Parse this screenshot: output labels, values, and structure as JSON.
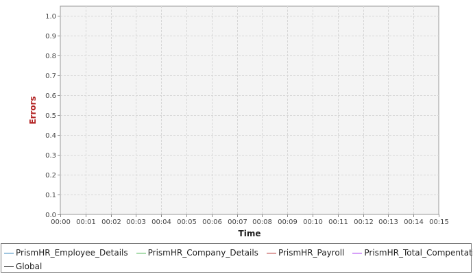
{
  "chart_data": {
    "type": "line",
    "title": "",
    "xlabel": "Time",
    "ylabel": "Errors",
    "x_ticks": [
      "00:00",
      "00:01",
      "00:02",
      "00:03",
      "00:04",
      "00:05",
      "00:06",
      "00:07",
      "00:08",
      "00:09",
      "00:10",
      "00:11",
      "00:12",
      "00:13",
      "00:14",
      "00:15"
    ],
    "y_ticks": [
      "0.0",
      "0.1",
      "0.2",
      "0.3",
      "0.4",
      "0.5",
      "0.6",
      "0.7",
      "0.8",
      "0.9",
      "1.0"
    ],
    "xlim": [
      "00:00",
      "00:15"
    ],
    "ylim": [
      0.0,
      1.05
    ],
    "grid": true,
    "legend_position": "bottom",
    "series": [
      {
        "name": "PrismHR_Employee_Details",
        "color": "#1f77b4",
        "values": []
      },
      {
        "name": "PrismHR_Company_Details",
        "color": "#3cb043",
        "values": []
      },
      {
        "name": "PrismHR_Payroll",
        "color": "#b22222",
        "values": []
      },
      {
        "name": "PrismHR_Total_Compentation",
        "color": "#a020f0",
        "values": []
      },
      {
        "name": "Global",
        "color": "#000000",
        "values": []
      }
    ],
    "ylabel_color": "#b22222",
    "plot_background": "#f4f4f4"
  }
}
